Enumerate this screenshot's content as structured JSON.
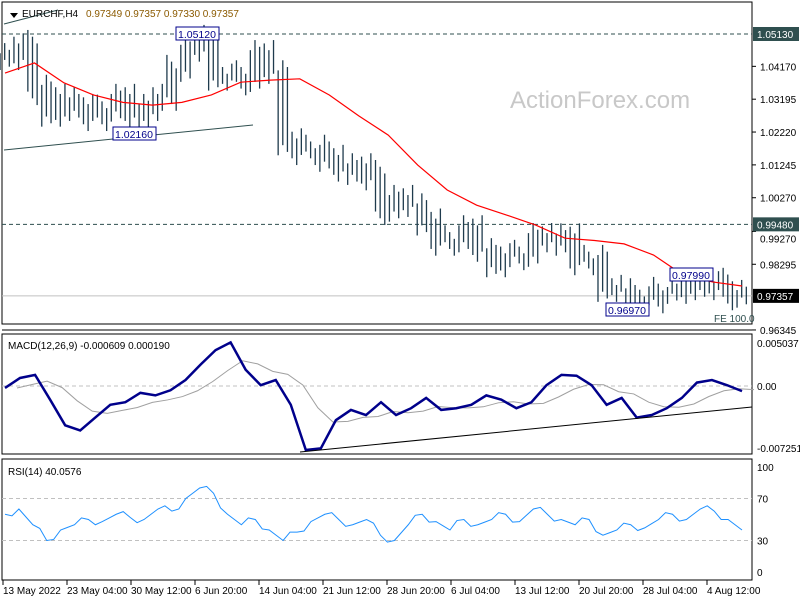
{
  "header": {
    "symbol": "EURCHF,H4",
    "ohlc": "0.97349 0.97357 0.97330 0.97357"
  },
  "watermark": "ActionForex.com",
  "colors": {
    "bars": "#1f3b4d",
    "ma": "#ff0000",
    "macd": "#00008b",
    "signal": "#a0a0a0",
    "rsi": "#1e90ff",
    "price_tag": "#2f4f4f"
  },
  "chart_data": [
    {
      "type": "bar",
      "title": "EURCHF,H4",
      "y_ticks": [
        "1.04170",
        "1.03195",
        "1.02220",
        "1.01245",
        "1.00270",
        "0.99270",
        "0.98295",
        "0.96345"
      ],
      "ylim": [
        0.96345,
        1.0513
      ],
      "levels": [
        {
          "label": "1.05130",
          "value": 1.0513
        },
        {
          "label": "0.99480",
          "value": 0.9948
        }
      ],
      "current_price": {
        "label": "0.97357",
        "value": 0.97357
      },
      "annotations": [
        {
          "label": "1.05120",
          "value": 1.0512
        },
        {
          "label": "1.02160",
          "value": 1.0216
        },
        {
          "label": "0.97990",
          "value": 0.9799
        },
        {
          "label": "0.96970",
          "value": 0.9697
        }
      ],
      "fe_label": "FE 100.0",
      "closes": [
        1.0451,
        1.048,
        1.0347,
        1.0273,
        1.032,
        1.03,
        1.027,
        1.0288,
        1.032,
        1.027,
        1.03,
        1.033,
        1.0406,
        1.0466,
        1.0495,
        1.039,
        1.039,
        1.0376,
        1.045,
        1.04,
        1.0198,
        1.0169,
        1.0169,
        1.0139,
        1.011,
        1.0124,
        1.0094,
        0.9991,
        1.002,
        1.0005,
        0.996,
        0.99,
        0.99,
        0.993,
        0.9872,
        0.9836,
        0.9857,
        0.9857,
        0.9907,
        0.99,
        0.9916,
        0.9842,
        0.9842,
        0.9753,
        0.9753,
        0.9723,
        0.9729,
        0.9747,
        0.9747,
        0.9774,
        0.9768,
        0.9774,
        0.9738,
        0.97357
      ],
      "moving_average": [
        1.0397,
        1.0427,
        1.0368,
        1.0332,
        1.031,
        1.0302,
        1.031,
        1.0332,
        1.037,
        1.0376,
        1.038,
        1.0332,
        1.027,
        1.0213,
        1.0124,
        1.005,
        1.0005,
        0.9976,
        0.9946,
        0.9907,
        0.99,
        0.989,
        0.9857,
        0.9798,
        0.9777,
        0.9765
      ]
    },
    {
      "type": "line",
      "title": "MACD(12,26,9) -0.000609 0.000190",
      "y_ticks": [
        "0.005037",
        "0.00",
        "-0.007251"
      ],
      "ylim": [
        -0.007251,
        0.005037
      ],
      "macd": [
        -0.00023,
        0.00094,
        0.0013,
        -0.0016,
        -0.0046,
        -0.0052,
        -0.0037,
        -0.0022,
        -0.0019,
        -0.0008,
        -0.0011,
        -0.0005,
        0.0007,
        0.0025,
        0.0042,
        0.0051,
        0.0019,
        0.0001,
        0.0007,
        -0.0022,
        -0.0075,
        -0.0073,
        -0.004,
        -0.0028,
        -0.0034,
        -0.0019,
        -0.0034,
        -0.0026,
        -0.0014,
        -0.0028,
        -0.0026,
        -0.0022,
        -0.0011,
        -0.0016,
        -0.0026,
        -0.0019,
        0.0001,
        0.0013,
        0.0012,
        0.0001,
        -0.0022,
        -0.0014,
        -0.0037,
        -0.0034,
        -0.0026,
        -0.0014,
        0.0004,
        0.0007,
        0.0001,
        -0.0006
      ]
    },
    {
      "type": "line",
      "title": "RSI(14) 40.0576",
      "y_ticks": [
        "100",
        "70",
        "30",
        "0"
      ],
      "ylim": [
        0,
        100
      ],
      "levels": [
        70,
        30
      ],
      "rsi": [
        55,
        60,
        45,
        30,
        40,
        45,
        50,
        48,
        55,
        52,
        50,
        60,
        58,
        70,
        80,
        75,
        55,
        45,
        50,
        40,
        30,
        38,
        48,
        55,
        50,
        45,
        50,
        35,
        30,
        45,
        55,
        48,
        40,
        50,
        45,
        50,
        55,
        48,
        60,
        55,
        50,
        45,
        50,
        35,
        40,
        45,
        42,
        50,
        55,
        50,
        60,
        58,
        50,
        40
      ]
    }
  ],
  "x_axis": {
    "ticks": [
      "13 May 2022",
      "23 May 04:00",
      "30 May 12:00",
      "6 Jun 20:00",
      "14 Jun 04:00",
      "21 Jun 12:00",
      "28 Jun 20:00",
      "6 Jul 04:00",
      "13 Jul 12:00",
      "20 Jul 20:00",
      "28 Jul 04:00",
      "4 Aug 12:00"
    ]
  }
}
